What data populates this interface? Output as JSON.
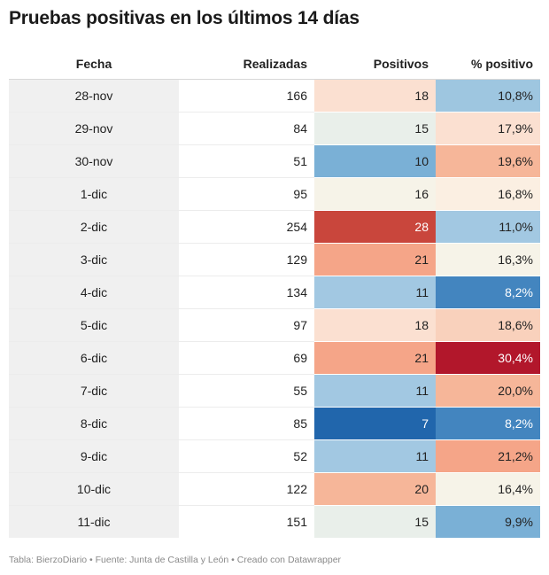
{
  "title": "Pruebas positivas en los últimos 14 días",
  "footer": "Tabla: BierzoDiario • Fuente: Junta de Castilla y León • Creado con Datawrapper",
  "chart_data": {
    "type": "table",
    "columns": [
      "Fecha",
      "Realizadas",
      "Positivos",
      "% positivo"
    ],
    "rows": [
      {
        "fecha": "28-nov",
        "realizadas": "166",
        "positivos": "18",
        "pct": "10,8%",
        "positivos_color": "#fbe0d1",
        "pct_color": "#9ec6e0"
      },
      {
        "fecha": "29-nov",
        "realizadas": "84",
        "positivos": "15",
        "pct": "17,9%",
        "positivos_color": "#e9efea",
        "pct_color": "#fbe0d1"
      },
      {
        "fecha": "30-nov",
        "realizadas": "51",
        "positivos": "10",
        "pct": "19,6%",
        "positivos_color": "#7ab0d6",
        "pct_color": "#f6b699"
      },
      {
        "fecha": "1-dic",
        "realizadas": "95",
        "positivos": "16",
        "pct": "16,8%",
        "positivos_color": "#f6f3e8",
        "pct_color": "#fbefe2"
      },
      {
        "fecha": "2-dic",
        "realizadas": "254",
        "positivos": "28",
        "pct": "11,0%",
        "positivos_color": "#c9463c",
        "pct_color": "#a2c8e2"
      },
      {
        "fecha": "3-dic",
        "realizadas": "129",
        "positivos": "21",
        "pct": "16,3%",
        "positivos_color": "#f5a588",
        "pct_color": "#f6f3e8"
      },
      {
        "fecha": "4-dic",
        "realizadas": "134",
        "positivos": "11",
        "pct": "8,2%",
        "positivos_color": "#a2c8e2",
        "pct_color": "#4385bf"
      },
      {
        "fecha": "5-dic",
        "realizadas": "97",
        "positivos": "18",
        "pct": "18,6%",
        "positivos_color": "#fbe0d1",
        "pct_color": "#f9d1bc"
      },
      {
        "fecha": "6-dic",
        "realizadas": "69",
        "positivos": "21",
        "pct": "30,4%",
        "positivos_color": "#f5a588",
        "pct_color": "#b2172b"
      },
      {
        "fecha": "7-dic",
        "realizadas": "55",
        "positivos": "11",
        "pct": "20,0%",
        "positivos_color": "#a2c8e2",
        "pct_color": "#f6b699"
      },
      {
        "fecha": "8-dic",
        "realizadas": "85",
        "positivos": "7",
        "pct": "8,2%",
        "positivos_color": "#2166ac",
        "pct_color": "#4385bf"
      },
      {
        "fecha": "9-dic",
        "realizadas": "52",
        "positivos": "11",
        "pct": "21,2%",
        "positivos_color": "#a2c8e2",
        "pct_color": "#f5a588"
      },
      {
        "fecha": "10-dic",
        "realizadas": "122",
        "positivos": "20",
        "pct": "16,4%",
        "positivos_color": "#f6b699",
        "pct_color": "#f6f3e8"
      },
      {
        "fecha": "11-dic",
        "realizadas": "151",
        "positivos": "15",
        "pct": "9,9%",
        "positivos_color": "#e9efea",
        "pct_color": "#7ab0d6"
      }
    ]
  }
}
